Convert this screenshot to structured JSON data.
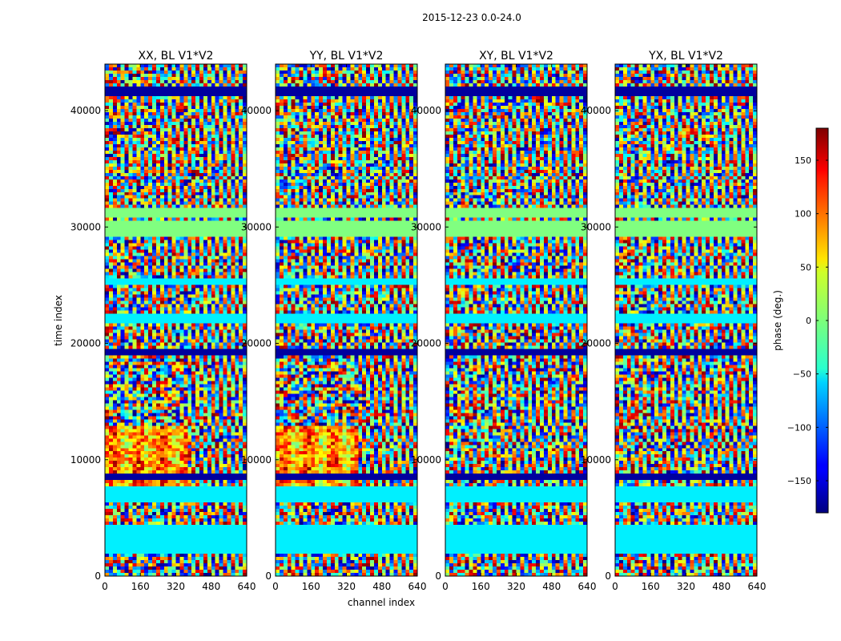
{
  "chart_data": {
    "type": "heatmap",
    "suptitle": "2015-12-23 0.0-24.0",
    "xlabel": "channel index",
    "ylabel": "time index",
    "xlim": [
      0,
      640
    ],
    "ylim": [
      0,
      44000
    ],
    "xticks": [
      0,
      160,
      320,
      480,
      640
    ],
    "yticks": [
      0,
      10000,
      20000,
      30000,
      40000
    ],
    "xtick_labels": [
      "0",
      "160",
      "320",
      "480",
      "640"
    ],
    "ytick_labels": [
      "0",
      "10000",
      "20000",
      "30000",
      "40000"
    ],
    "panels": [
      {
        "title": "XX, BL V1*V2",
        "product": "XX"
      },
      {
        "title": "YY, BL V1*V2",
        "product": "YY"
      },
      {
        "title": "XY, BL V1*V2",
        "product": "XY"
      },
      {
        "title": "YX, BL V1*V2",
        "product": "YX"
      }
    ],
    "colorbar": {
      "label": "phase (deg.)",
      "range": [
        -180,
        180
      ],
      "ticks": [
        150,
        100,
        50,
        0,
        -50,
        -100,
        -150
      ],
      "tick_labels": [
        "150",
        "100",
        "50",
        "0",
        "−50",
        "−100",
        "−150"
      ],
      "colormap": "jet"
    }
  }
}
